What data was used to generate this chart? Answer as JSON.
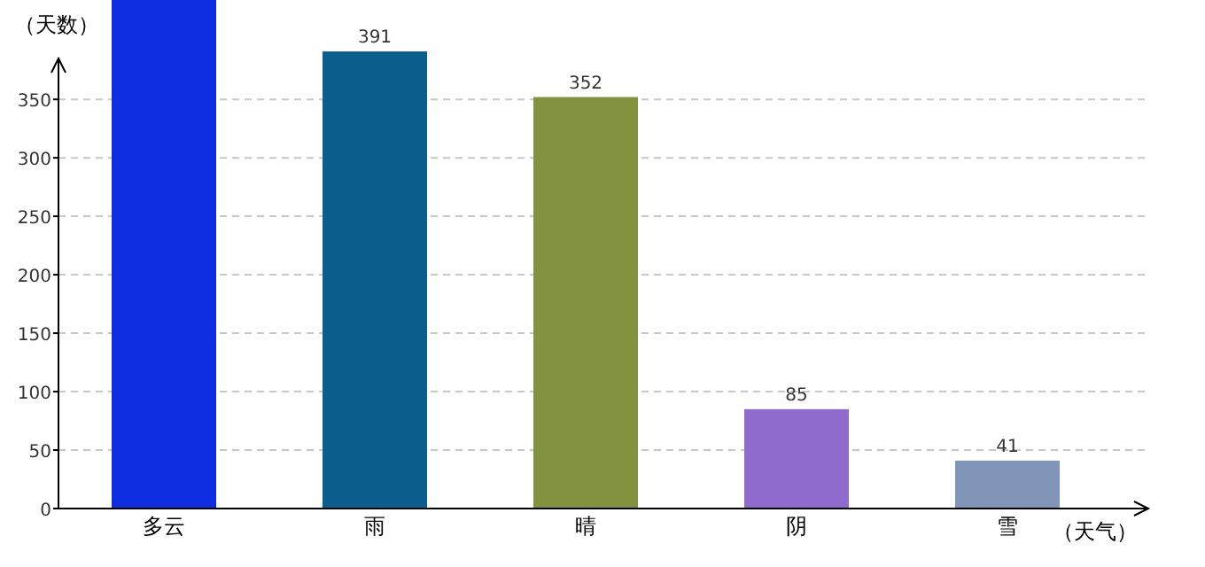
{
  "chart_data": {
    "type": "bar",
    "xlabel": "（天气）",
    "ylabel": "（天数）",
    "categories": [
      "多云",
      "雨",
      "晴",
      "阴",
      "雪"
    ],
    "values": [
      435,
      391,
      352,
      85,
      41
    ],
    "colors": [
      "#0e2de0",
      "#0a5f8c",
      "#82923f",
      "#8e6bcc",
      "#8095b8"
    ],
    "value_labels": [
      null,
      "391",
      "352",
      "85",
      "41"
    ],
    "ylim": [
      0,
      435
    ],
    "yticks": [
      0,
      50,
      100,
      150,
      200,
      250,
      300,
      350
    ],
    "grid": "y"
  }
}
